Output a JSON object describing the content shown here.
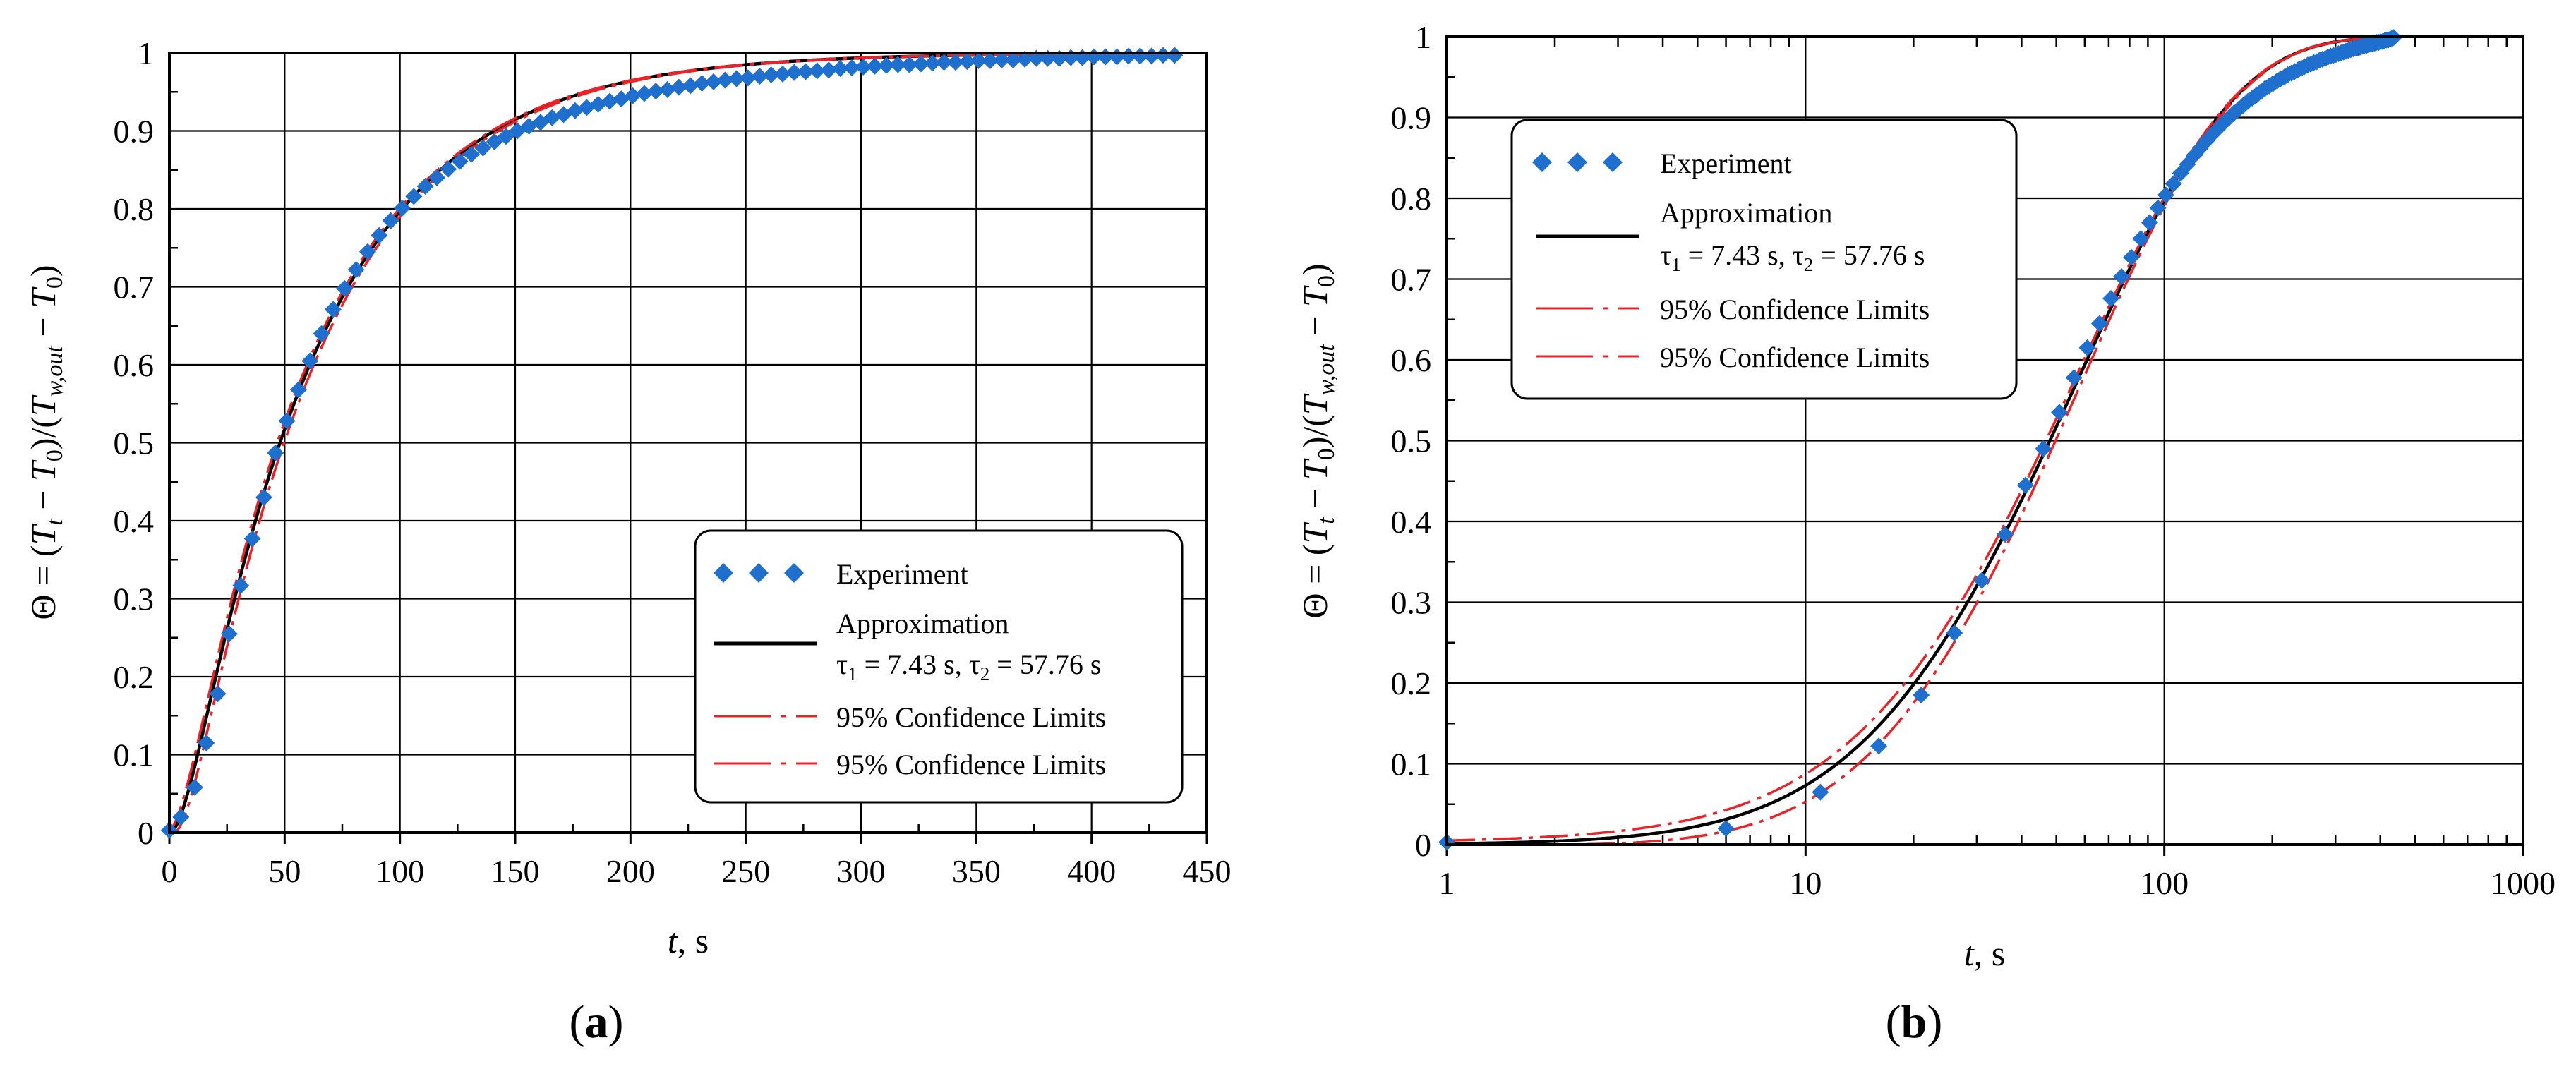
{
  "colors": {
    "experiment": "#1f6fce",
    "approximation": "#000000",
    "confidence": "#e8242a",
    "grid": "#000000",
    "legend_border": "#000000"
  },
  "shared": {
    "ylabel": "Θ = (Tt − T0)/(Tw,out − T0)",
    "ylabel_parts": {
      "theta": "Θ = (",
      "T1": "T",
      "sub_t": "t",
      "minus1": " − ",
      "T2": "T",
      "sub_0a": "0",
      "mid": ")/(",
      "T3": "T",
      "sub_wout": "w,out",
      "minus2": " − ",
      "T4": "T",
      "sub_0b": "0",
      "close": ")"
    },
    "xlabel_var": "t",
    "xlabel_unit": ", s",
    "legend": {
      "experiment": "Experiment",
      "approximation": "Approximation",
      "tau1_sym": "τ",
      "tau1_sub": "1",
      "tau1_val": " = 7.43 s, ",
      "tau2_sym": "τ",
      "tau2_sub": "2",
      "tau2_val": " = 57.76 s",
      "confidence_upper": "95% Confidence Limits",
      "confidence_lower": "95% Confidence Limits"
    },
    "model": {
      "tau1": 7.43,
      "tau2": 57.76
    }
  },
  "chart_data": [
    {
      "type": "scatter",
      "panel_label": "(a)",
      "panel_letter": "a",
      "xscale": "linear",
      "xlim": [
        0,
        450
      ],
      "ylim": [
        0,
        1
      ],
      "xticks": [
        0,
        50,
        100,
        150,
        200,
        250,
        300,
        350,
        400,
        450
      ],
      "xtick_labels": [
        "0",
        "50",
        "100",
        "150",
        "200",
        "250",
        "300",
        "350",
        "400",
        "450"
      ],
      "yticks": [
        0,
        0.1,
        0.2,
        0.3,
        0.4,
        0.5,
        0.6,
        0.7,
        0.8,
        0.9,
        1
      ],
      "ytick_labels": [
        "0",
        "0.1",
        "0.2",
        "0.3",
        "0.4",
        "0.5",
        "0.6",
        "0.7",
        "0.8",
        "0.9",
        "1"
      ],
      "xlabel": "t, s",
      "ylabel": "Θ = (Tt − T0)/(Tw,out − T0)",
      "grid": true,
      "legend_position": "bottom-right",
      "series": [
        {
          "name": "Experiment",
          "kind": "markers",
          "marker": "diamond",
          "x": [
            0,
            5,
            11,
            16,
            21,
            26,
            31,
            36,
            41,
            46,
            51,
            56,
            61,
            66,
            71,
            76,
            81,
            86,
            91,
            96,
            101,
            106,
            111,
            116,
            121,
            126,
            131,
            136,
            141,
            146,
            151,
            156,
            161,
            166,
            171,
            176,
            181,
            186,
            191,
            196,
            201,
            206,
            211,
            216,
            221,
            226,
            231,
            236,
            241,
            246,
            251,
            256,
            261,
            266,
            271,
            276,
            281,
            286,
            291,
            296,
            301,
            306,
            311,
            316,
            321,
            326,
            331,
            336,
            341,
            346,
            351,
            356,
            361,
            366,
            371,
            376,
            381,
            386,
            391,
            396,
            401,
            406,
            411,
            416,
            421,
            426,
            431,
            436
          ],
          "y": [
            0.003,
            0.02,
            0.058,
            0.115,
            0.178,
            0.255,
            0.317,
            0.377,
            0.43,
            0.487,
            0.528,
            0.568,
            0.605,
            0.64,
            0.671,
            0.698,
            0.722,
            0.745,
            0.766,
            0.785,
            0.801,
            0.816,
            0.829,
            0.84,
            0.851,
            0.861,
            0.87,
            0.878,
            0.886,
            0.893,
            0.9,
            0.906,
            0.911,
            0.917,
            0.921,
            0.926,
            0.93,
            0.934,
            0.938,
            0.941,
            0.945,
            0.948,
            0.951,
            0.953,
            0.956,
            0.958,
            0.961,
            0.963,
            0.965,
            0.967,
            0.968,
            0.97,
            0.972,
            0.973,
            0.975,
            0.976,
            0.977,
            0.978,
            0.98,
            0.981,
            0.982,
            0.983,
            0.984,
            0.985,
            0.985,
            0.986,
            0.987,
            0.988,
            0.988,
            0.989,
            0.99,
            0.99,
            0.991,
            0.991,
            0.992,
            0.993,
            0.993,
            0.993,
            0.994,
            0.994,
            0.995,
            0.995,
            0.995,
            0.996,
            0.996,
            0.996,
            0.997,
            0.997
          ]
        },
        {
          "name": "Approximation τ1 = 7.43 s, τ2 = 57.76 s",
          "kind": "line",
          "model": "two_time_constant",
          "t_offset": 0,
          "range": [
            0,
            436
          ]
        },
        {
          "name": "95% Confidence Limits",
          "kind": "dashdot",
          "model": "two_time_constant",
          "t_offset": 1.8,
          "range": [
            0,
            436
          ]
        },
        {
          "name": "95% Confidence Limits",
          "kind": "dashdot",
          "model": "two_time_constant",
          "t_offset": -1.2,
          "range": [
            0,
            436
          ]
        }
      ]
    },
    {
      "type": "scatter",
      "panel_label": "(b)",
      "panel_letter": "b",
      "xscale": "log",
      "xlim": [
        1,
        1000
      ],
      "ylim": [
        0,
        1
      ],
      "xticks": [
        1,
        10,
        100,
        1000
      ],
      "xtick_labels": [
        "1",
        "10",
        "100",
        "1000"
      ],
      "yticks": [
        0,
        0.1,
        0.2,
        0.3,
        0.4,
        0.5,
        0.6,
        0.7,
        0.8,
        0.9,
        1
      ],
      "ytick_labels": [
        "0",
        "0.1",
        "0.2",
        "0.3",
        "0.4",
        "0.5",
        "0.6",
        "0.7",
        "0.8",
        "0.9",
        "1"
      ],
      "xlabel": "t, s",
      "ylabel": "Θ = (Tt − T0)/(Tw,out − T0)",
      "grid": true,
      "legend_position": "top-left",
      "series": [
        {
          "name": "Experiment",
          "kind": "markers",
          "marker": "diamond",
          "x": [
            1,
            6,
            11,
            16,
            21,
            26,
            31,
            36,
            41,
            46,
            51,
            56,
            61,
            66,
            71,
            76,
            81,
            86,
            91,
            96,
            101,
            106,
            111,
            116,
            121,
            126,
            131,
            136,
            141,
            146,
            151,
            156,
            161,
            166,
            171,
            176,
            181,
            186,
            191,
            196,
            201,
            206,
            211,
            216,
            221,
            226,
            231,
            236,
            241,
            246,
            251,
            256,
            261,
            266,
            271,
            276,
            281,
            286,
            291,
            296,
            301,
            306,
            311,
            316,
            321,
            326,
            331,
            336,
            341,
            346,
            351,
            356,
            361,
            366,
            371,
            376,
            381,
            386,
            391,
            396,
            401,
            406,
            411,
            416,
            421,
            426,
            431,
            436
          ],
          "y": [
            0.003,
            0.02,
            0.065,
            0.122,
            0.185,
            0.262,
            0.327,
            0.384,
            0.445,
            0.49,
            0.535,
            0.578,
            0.615,
            0.645,
            0.676,
            0.703,
            0.727,
            0.75,
            0.77,
            0.788,
            0.804,
            0.818,
            0.831,
            0.842,
            0.853,
            0.862,
            0.871,
            0.879,
            0.886,
            0.893,
            0.899,
            0.905,
            0.91,
            0.915,
            0.92,
            0.924,
            0.928,
            0.932,
            0.936,
            0.939,
            0.942,
            0.945,
            0.948,
            0.95,
            0.953,
            0.955,
            0.957,
            0.959,
            0.961,
            0.963,
            0.965,
            0.966,
            0.968,
            0.969,
            0.971,
            0.972,
            0.973,
            0.975,
            0.976,
            0.977,
            0.978,
            0.979,
            0.98,
            0.981,
            0.982,
            0.983,
            0.984,
            0.985,
            0.986,
            0.986,
            0.987,
            0.988,
            0.989,
            0.989,
            0.99,
            0.991,
            0.991,
            0.992,
            0.993,
            0.993,
            0.994,
            0.994,
            0.995,
            0.996,
            0.996,
            0.997,
            0.998,
            0.999
          ]
        },
        {
          "name": "Approximation τ1 = 7.43 s, τ2 = 57.76 s",
          "kind": "line",
          "model": "two_time_constant",
          "t_offset": 0,
          "range": [
            1,
            436
          ]
        },
        {
          "name": "95% Confidence Limits",
          "kind": "dashdot",
          "model": "two_time_constant",
          "t_offset": 1.8,
          "range": [
            1,
            436
          ]
        },
        {
          "name": "95% Confidence Limits",
          "kind": "dashdot",
          "model": "two_time_constant",
          "t_offset": -1.2,
          "range": [
            1,
            436
          ]
        }
      ]
    }
  ]
}
